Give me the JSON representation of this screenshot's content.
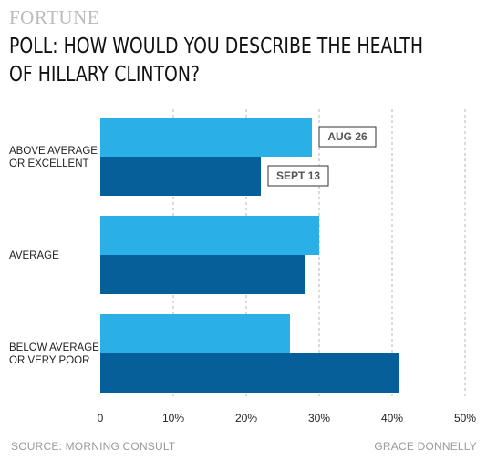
{
  "brand": "FORTUNE",
  "title_lines": [
    "POLL: HOW WOULD YOU DESCRIBE THE HEALTH",
    "OF HILLARY CLINTON?"
  ],
  "source": "SOURCE: MORNING CONSULT",
  "credit": "GRACE DONNELLY",
  "chart_data": {
    "type": "bar",
    "orientation": "horizontal",
    "categories": [
      [
        "ABOVE AVERAGE",
        "OR EXCELLENT"
      ],
      [
        "AVERAGE"
      ],
      [
        "BELOW AVERAGE",
        "OR VERY POOR"
      ]
    ],
    "series": [
      {
        "name": "AUG 26",
        "values": [
          29,
          30,
          26
        ],
        "color": "#2ab0e6"
      },
      {
        "name": "SEPT 13",
        "values": [
          22,
          28,
          41
        ],
        "color": "#05609a"
      }
    ],
    "xlim": [
      0,
      50
    ],
    "xticks": [
      0,
      10,
      20,
      30,
      40,
      50
    ],
    "xtick_labels": [
      "0",
      "10%",
      "20%",
      "30%",
      "40%",
      "50%"
    ],
    "grid": "vertical dashed",
    "legend": "inline labels next to first category bars"
  }
}
